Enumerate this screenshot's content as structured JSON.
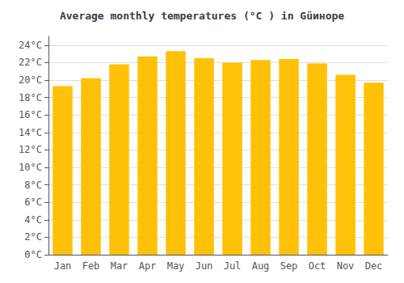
{
  "chart_data": {
    "type": "bar",
    "title": "Average monthly temperatures (°C ) in Güинope",
    "categories": [
      "Jan",
      "Feb",
      "Mar",
      "Apr",
      "May",
      "Jun",
      "Jul",
      "Aug",
      "Sep",
      "Oct",
      "Nov",
      "Dec"
    ],
    "values": [
      19.3,
      20.2,
      21.8,
      22.7,
      23.3,
      22.5,
      22.0,
      22.3,
      22.4,
      21.9,
      20.6,
      19.7
    ],
    "color": "#FFC107",
    "ylim": [
      0,
      25
    ],
    "yticks": [
      {
        "value": 0,
        "label": "0°C"
      },
      {
        "value": 2,
        "label": "2°C"
      },
      {
        "value": 4,
        "label": "4°C"
      },
      {
        "value": 6,
        "label": "6°C"
      },
      {
        "value": 8,
        "label": "8°C"
      },
      {
        "value": 10,
        "label": "10°C"
      },
      {
        "value": 12,
        "label": "12°C"
      },
      {
        "value": 14,
        "label": "14°C"
      },
      {
        "value": 16,
        "label": "16°C"
      },
      {
        "value": 18,
        "label": "18°C"
      },
      {
        "value": 20,
        "label": "20°C"
      },
      {
        "value": 22,
        "label": "22°C"
      },
      {
        "value": 24,
        "label": "24°C"
      }
    ],
    "grid": true
  }
}
